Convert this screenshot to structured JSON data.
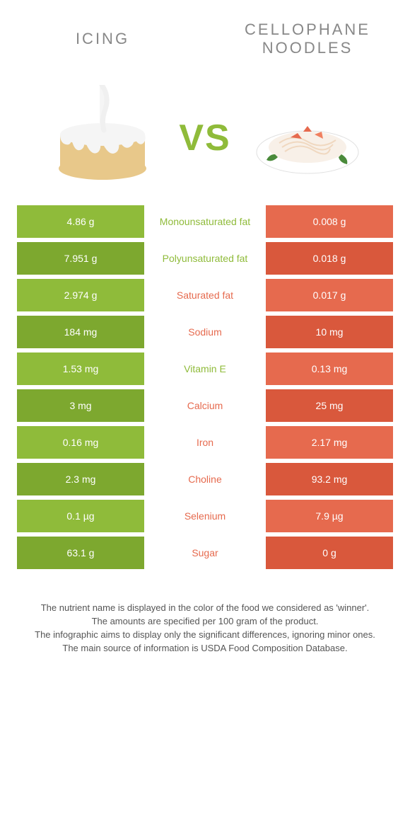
{
  "colors": {
    "green": "#8fbb3a",
    "green_dark": "#7da82f",
    "orange": "#e66a4e",
    "orange_dark": "#d9583c",
    "mid_bg": "#ffffff",
    "text_gray": "#888888",
    "footer_text": "#555555"
  },
  "titles": {
    "left": "Icing",
    "right": "Cellophane Noodles"
  },
  "vs_label": "VS",
  "rows": [
    {
      "left": "4.86 g",
      "label": "Monounsaturated fat",
      "right": "0.008 g",
      "winner": "left"
    },
    {
      "left": "7.951 g",
      "label": "Polyunsaturated fat",
      "right": "0.018 g",
      "winner": "left"
    },
    {
      "left": "2.974 g",
      "label": "Saturated fat",
      "right": "0.017 g",
      "winner": "right"
    },
    {
      "left": "184 mg",
      "label": "Sodium",
      "right": "10 mg",
      "winner": "right"
    },
    {
      "left": "1.53 mg",
      "label": "Vitamin E",
      "right": "0.13 mg",
      "winner": "left"
    },
    {
      "left": "3 mg",
      "label": "Calcium",
      "right": "25 mg",
      "winner": "right"
    },
    {
      "left": "0.16 mg",
      "label": "Iron",
      "right": "2.17 mg",
      "winner": "right"
    },
    {
      "left": "2.3 mg",
      "label": "Choline",
      "right": "93.2 mg",
      "winner": "right"
    },
    {
      "left": "0.1 µg",
      "label": "Selenium",
      "right": "7.9 µg",
      "winner": "right"
    },
    {
      "left": "63.1 g",
      "label": "Sugar",
      "right": "0 g",
      "winner": "right"
    }
  ],
  "footer_lines": [
    "The nutrient name is displayed in the color of the food we considered as 'winner'.",
    "The amounts are specified per 100 gram of the product.",
    "The infographic aims to display only the significant differences, ignoring minor ones.",
    "The main source of information is USDA Food Composition Database."
  ]
}
